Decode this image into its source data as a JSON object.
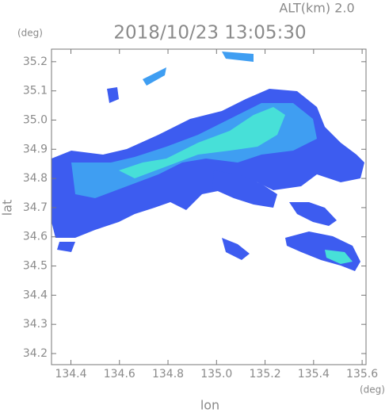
{
  "chart_data": {
    "type": "map",
    "title": "2018/10/23 13:05:30",
    "subtitle": "ALT(km) 2.0",
    "y_unit": "(deg)",
    "x_unit": "(deg)",
    "x_label": "lon",
    "y_label": "lat",
    "xlim": [
      134.32,
      135.616
    ],
    "ylim": [
      34.162,
      35.243
    ],
    "xticks": [
      134.4,
      134.6,
      134.8,
      {
        "value": 135,
        "label": "135.0"
      },
      135.2,
      135.4,
      135.6
    ],
    "yticks": [
      34.2,
      34.3,
      34.4,
      34.5,
      34.6,
      34.7,
      34.8,
      34.9,
      {
        "value": 35,
        "label": "35.0"
      },
      35.1,
      35.2
    ]
  }
}
